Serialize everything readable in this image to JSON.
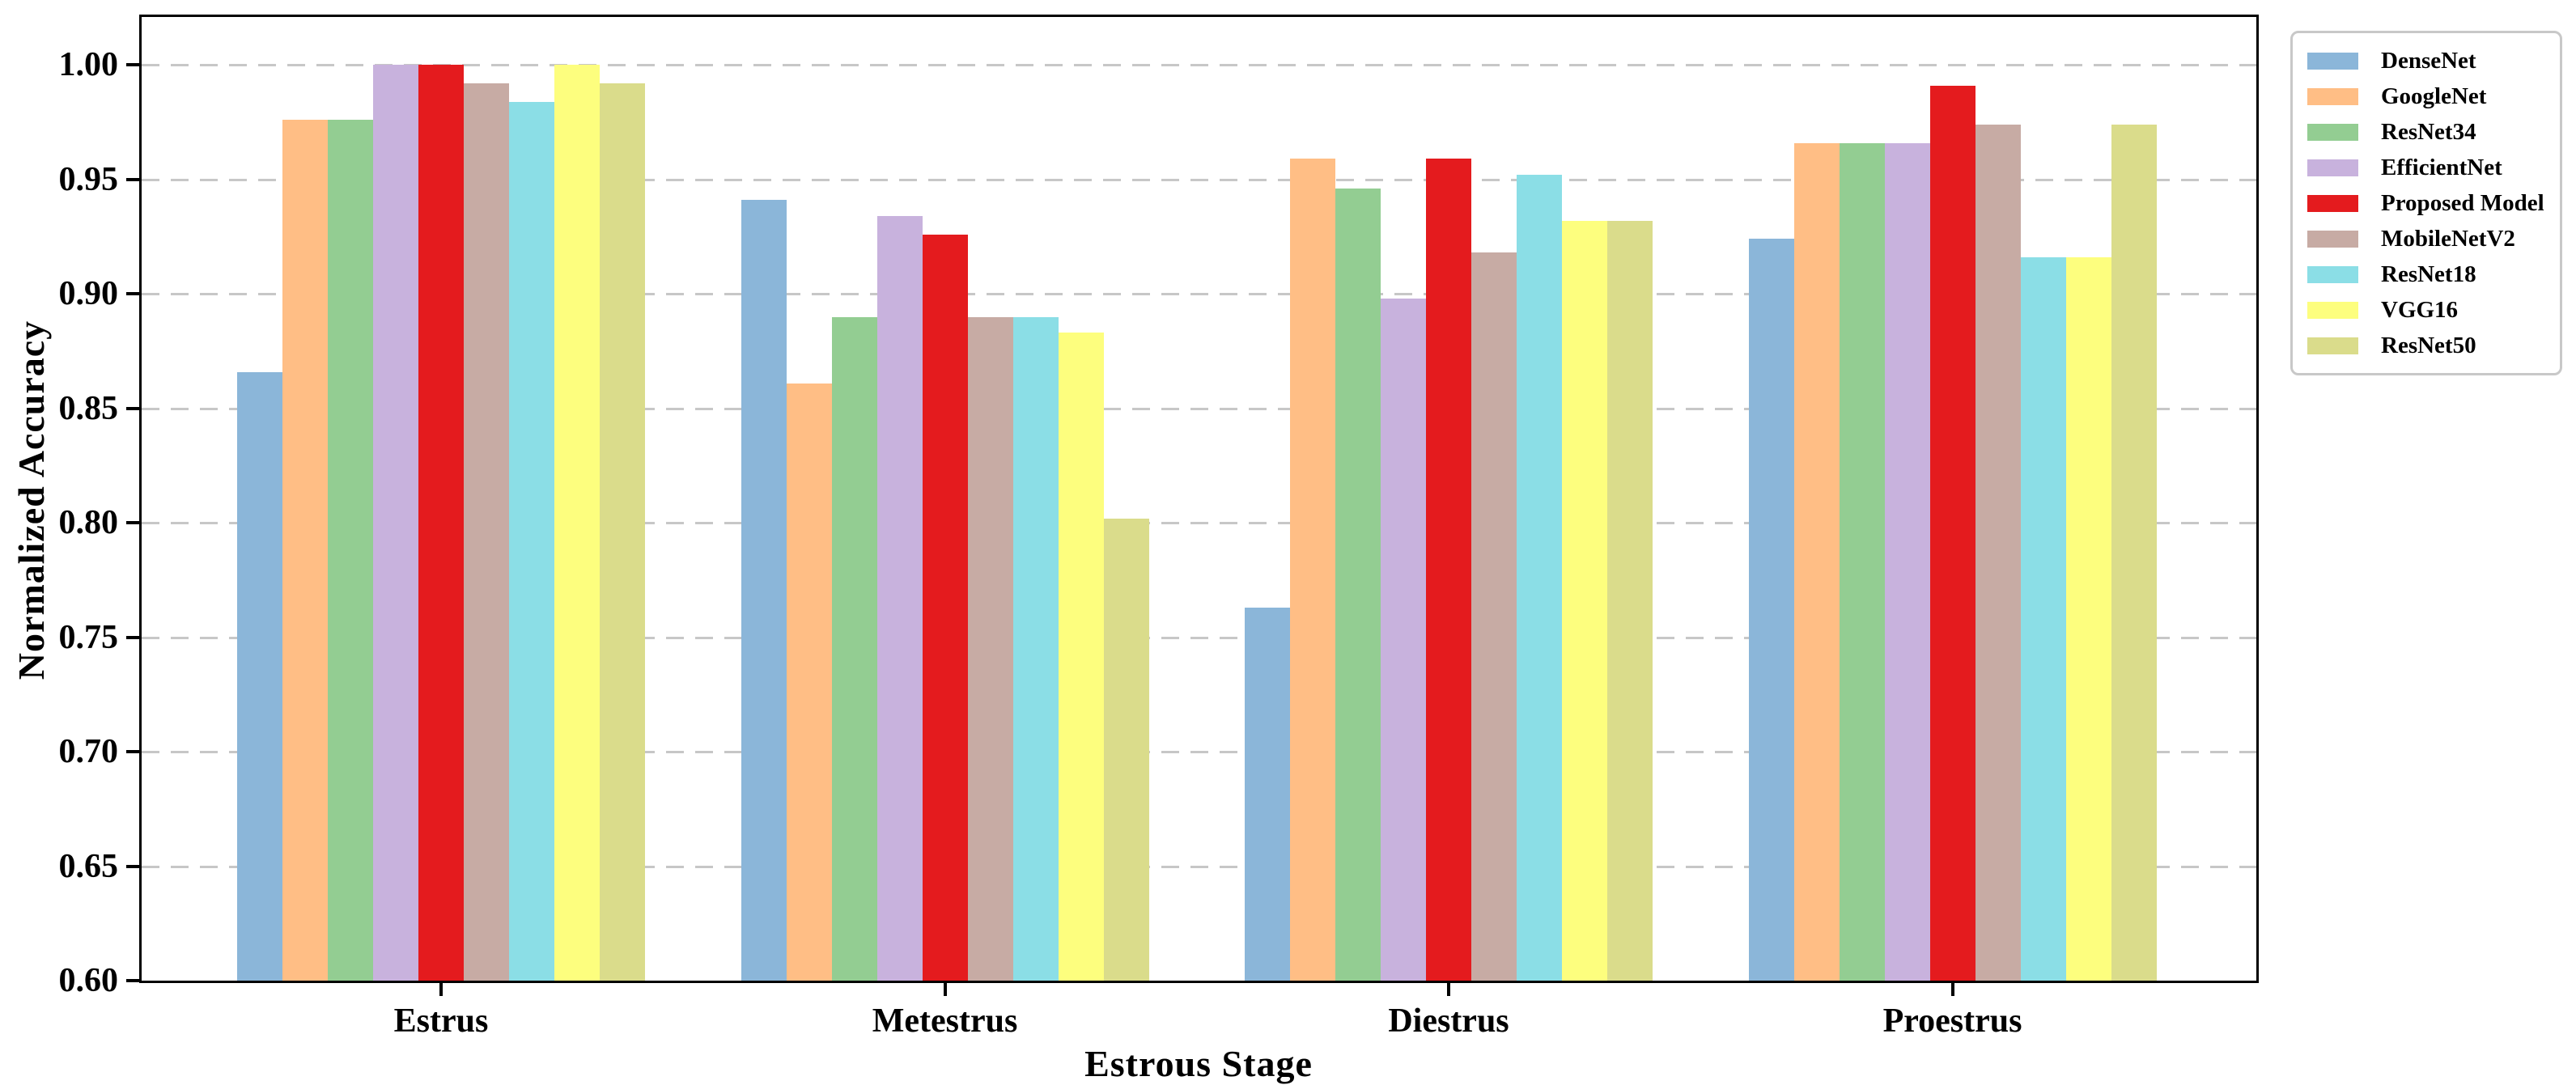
{
  "figure": {
    "background": "#ffffff",
    "axis_color": "#000000",
    "grid_color": "#c7c7c7",
    "legend_border_color": "#c8c8c8"
  },
  "chart_data": {
    "type": "bar",
    "title": "",
    "xlabel": "Estrous Stage",
    "ylabel": "Normalized Accuracy",
    "categories": [
      "Estrus",
      "Metestrus",
      "Diestrus",
      "Proestrus"
    ],
    "series": [
      {
        "name": "DenseNet",
        "color": "#8bb6d9",
        "values": [
          0.866,
          0.941,
          0.763,
          0.924
        ]
      },
      {
        "name": "GoogleNet",
        "color": "#ffbe85",
        "values": [
          0.976,
          0.861,
          0.959,
          0.966
        ]
      },
      {
        "name": "ResNet34",
        "color": "#93cd92",
        "values": [
          0.976,
          0.89,
          0.946,
          0.966
        ]
      },
      {
        "name": "EfficientNet",
        "color": "#c8b2dd",
        "values": [
          1.0,
          0.934,
          0.898,
          0.966
        ]
      },
      {
        "name": "Proposed Model",
        "color": "#e41b1e",
        "values": [
          1.0,
          0.926,
          0.959,
          0.991
        ]
      },
      {
        "name": "MobileNetV2",
        "color": "#c7aba4",
        "values": [
          0.992,
          0.89,
          0.918,
          0.974
        ]
      },
      {
        "name": "ResNet18",
        "color": "#8bdee6",
        "values": [
          0.984,
          0.89,
          0.952,
          0.916
        ]
      },
      {
        "name": "VGG16",
        "color": "#fdfe7e",
        "values": [
          1.0,
          0.883,
          0.932,
          0.916
        ]
      },
      {
        "name": "ResNet50",
        "color": "#dadc8b",
        "values": [
          0.992,
          0.802,
          0.932,
          0.974
        ]
      }
    ],
    "ylim": [
      0.6,
      1.021
    ],
    "y_ticks": [
      1.0,
      0.95,
      0.9,
      0.85,
      0.8,
      0.75,
      0.7,
      0.65,
      0.6
    ],
    "grid": "horizontal-dashed",
    "legend_position": "outside-upper-right"
  }
}
